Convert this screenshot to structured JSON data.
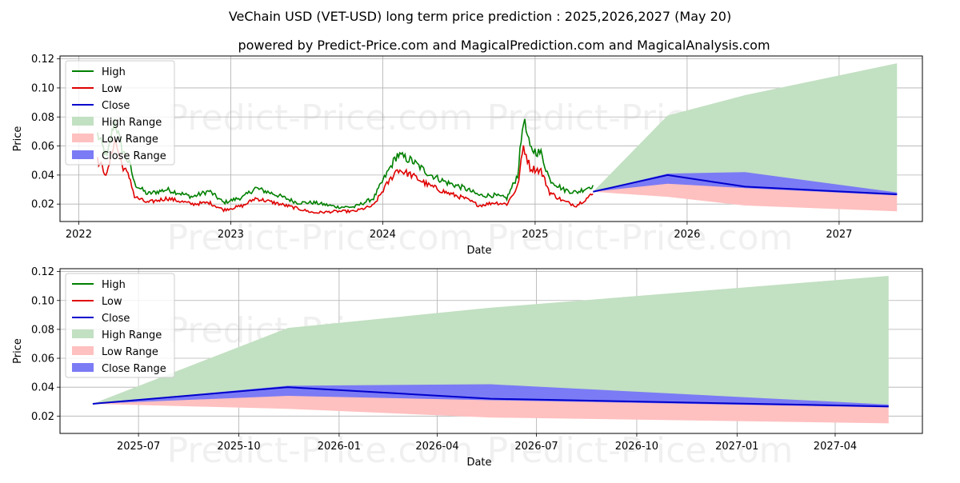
{
  "header": {
    "title": "VeChain USD (VET-USD) long term price prediction : 2025,2026,2027 (May 20)",
    "subtitle": "powered by Predict-Price.com and MagicalPrediction.com and MagicalAnalysis.com"
  },
  "watermark": "Predict-Price.com",
  "colors": {
    "high": "#008000",
    "low": "#e00000",
    "close": "#0000cc",
    "high_range": "#c2e0c2",
    "low_range": "#ffc0c0",
    "close_range": "#7b7bf5"
  },
  "chart_data": [
    {
      "type": "line",
      "xlabel": "Date",
      "ylabel": "Price",
      "x_ticks": [
        "2022",
        "2023",
        "2024",
        "2025",
        "2026",
        "2027"
      ],
      "y_ticks": [
        "0.02",
        "0.04",
        "0.06",
        "0.08",
        "0.10",
        "0.12"
      ],
      "xlim": [
        "2021-11-17",
        "2027-07-20"
      ],
      "ylim": [
        0.008,
        0.122
      ],
      "grid": true,
      "legend_position": "top-left",
      "legend": [
        "High",
        "Low",
        "Close",
        "High Range",
        "Low Range",
        "Close Range"
      ],
      "history": {
        "x": [
          "2022-02-15",
          "2022-03-10",
          "2022-03-28",
          "2022-04-15",
          "2022-05-05",
          "2022-05-15",
          "2022-06-15",
          "2022-08-01",
          "2022-10-01",
          "2022-11-10",
          "2022-12-15",
          "2023-02-01",
          "2023-03-01",
          "2023-04-15",
          "2023-06-10",
          "2023-07-20",
          "2023-09-15",
          "2023-10-25",
          "2023-12-10",
          "2024-01-05",
          "2024-02-05",
          "2024-03-10",
          "2024-04-20",
          "2024-06-01",
          "2024-07-15",
          "2024-08-20",
          "2024-09-25",
          "2024-10-25",
          "2024-11-20",
          "2024-12-04",
          "2024-12-20",
          "2025-01-15",
          "2025-02-05",
          "2025-03-10",
          "2025-04-10",
          "2025-05-20"
        ],
        "high": [
          0.068,
          0.052,
          0.078,
          0.058,
          0.046,
          0.034,
          0.027,
          0.03,
          0.025,
          0.029,
          0.021,
          0.025,
          0.031,
          0.027,
          0.021,
          0.021,
          0.018,
          0.018,
          0.024,
          0.038,
          0.054,
          0.05,
          0.041,
          0.035,
          0.031,
          0.026,
          0.026,
          0.024,
          0.04,
          0.079,
          0.058,
          0.055,
          0.037,
          0.03,
          0.028,
          0.033
        ],
        "low": [
          0.05,
          0.04,
          0.065,
          0.047,
          0.037,
          0.025,
          0.021,
          0.024,
          0.02,
          0.021,
          0.016,
          0.019,
          0.024,
          0.021,
          0.017,
          0.014,
          0.015,
          0.015,
          0.019,
          0.031,
          0.044,
          0.04,
          0.033,
          0.028,
          0.024,
          0.019,
          0.021,
          0.02,
          0.032,
          0.06,
          0.045,
          0.043,
          0.028,
          0.022,
          0.019,
          0.027
        ],
        "close": [
          0.055,
          0.045,
          0.07,
          0.052,
          0.04,
          0.029,
          0.023,
          0.027,
          0.022,
          0.024,
          0.018,
          0.021,
          0.026,
          0.023,
          0.019,
          0.017,
          0.016,
          0.016,
          0.021,
          0.034,
          0.048,
          0.044,
          0.036,
          0.031,
          0.027,
          0.022,
          0.023,
          0.022,
          0.035,
          0.065,
          0.05,
          0.048,
          0.032,
          0.026,
          0.023,
          0.029
        ]
      },
      "forecast": {
        "x": [
          "2025-05-20",
          "2025-11-15",
          "2026-05-20",
          "2027-05-20"
        ],
        "close": [
          0.0285,
          0.04,
          0.032,
          0.0267
        ],
        "high_range_upper": [
          0.0285,
          0.081,
          0.095,
          0.117
        ],
        "low_range_lower": [
          0.0285,
          0.025,
          0.019,
          0.015
        ],
        "close_range_upper": [
          0.0285,
          0.041,
          0.042,
          0.028
        ],
        "close_range_lower": [
          0.0285,
          0.034,
          0.031,
          0.026
        ]
      }
    },
    {
      "type": "line",
      "xlabel": "Date",
      "ylabel": "Price",
      "x_ticks": [
        "2025-07",
        "2025-10",
        "2026-01",
        "2026-04",
        "2026-07",
        "2026-10",
        "2027-01",
        "2027-04"
      ],
      "y_ticks": [
        "0.02",
        "0.04",
        "0.06",
        "0.08",
        "0.10",
        "0.12"
      ],
      "xlim": [
        "2025-04-20",
        "2027-06-20"
      ],
      "ylim": [
        0.008,
        0.122
      ],
      "grid": true,
      "legend_position": "top-left",
      "legend": [
        "High",
        "Low",
        "Close",
        "High Range",
        "Low Range",
        "Close Range"
      ],
      "forecast": {
        "x": [
          "2025-05-20",
          "2025-11-15",
          "2026-05-20",
          "2027-05-20"
        ],
        "close": [
          0.0285,
          0.04,
          0.032,
          0.0267
        ],
        "high_range_upper": [
          0.0285,
          0.081,
          0.095,
          0.117
        ],
        "low_range_lower": [
          0.0285,
          0.025,
          0.019,
          0.015
        ],
        "close_range_upper": [
          0.0285,
          0.041,
          0.042,
          0.028
        ],
        "close_range_lower": [
          0.0285,
          0.034,
          0.031,
          0.026
        ]
      }
    }
  ]
}
